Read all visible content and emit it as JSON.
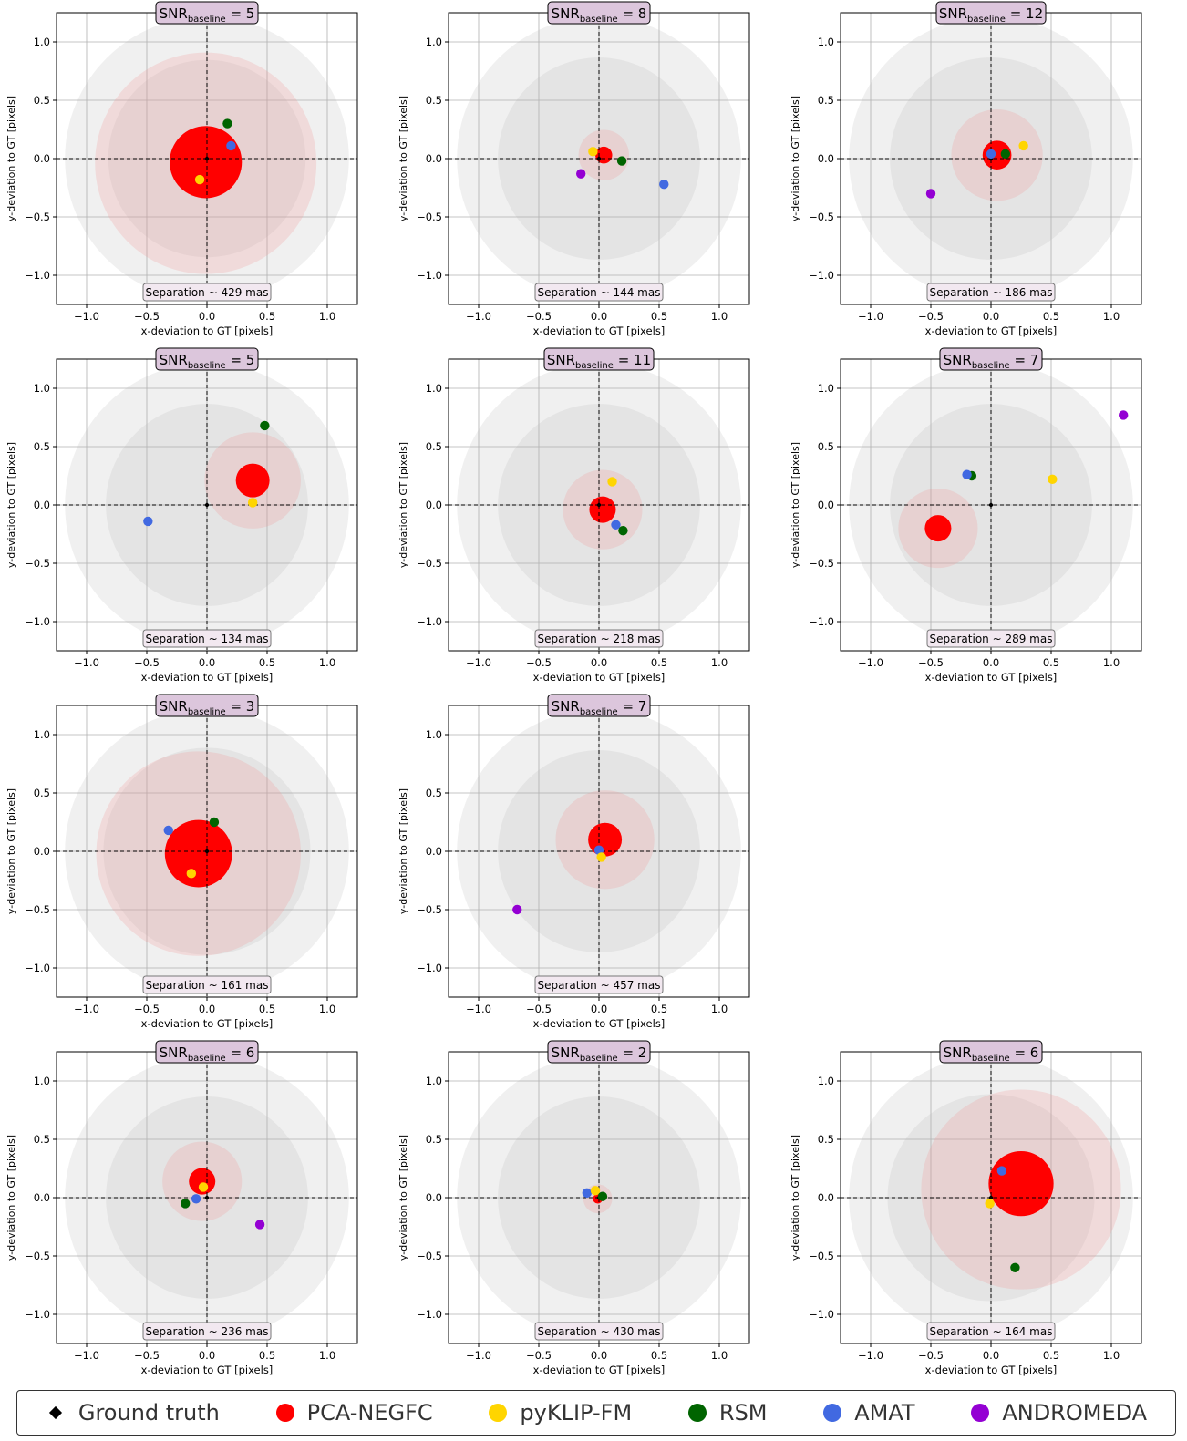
{
  "method_colors": {
    "PCA-NEGFC": "#ff0000",
    "pyKLIP-FM": "#ffd500",
    "RSM": "#006400",
    "AMAT": "#4169e1",
    "ANDROMEDA": "#9400d3"
  },
  "legend": [
    {
      "label": "Ground truth",
      "marker": "diamond",
      "color": "#000000"
    },
    {
      "label": "PCA-NEGFC",
      "marker": "dot",
      "color": "#ff0000"
    },
    {
      "label": "pyKLIP-FM",
      "marker": "dot",
      "color": "#ffd500"
    },
    {
      "label": "RSM",
      "marker": "dot",
      "color": "#006400"
    },
    {
      "label": "AMAT",
      "marker": "dot",
      "color": "#4169e1"
    },
    {
      "label": "ANDROMEDA",
      "marker": "dot",
      "color": "#9400d3"
    }
  ],
  "chart_data": [
    {
      "type": "scatter",
      "snr": "5",
      "separation": "Separation ~ 429 mas",
      "xlabel": "x-deviation to GT [pixels]",
      "ylabel": "y-deviation to GT [pixels]",
      "xlim": [
        -1.25,
        1.25
      ],
      "ylim": [
        -1.25,
        1.25
      ],
      "xticks": [
        "−1.0",
        "−0.5",
        "0.0",
        "0.5",
        "1.0"
      ],
      "yticks": [
        "−1.0",
        "−0.5",
        "0.0",
        "0.5",
        "1.0"
      ],
      "grey_circles": [
        1.18,
        0.82
      ],
      "pca_uncertainty": {
        "x": -0.01,
        "y": -0.04,
        "r": 0.92
      },
      "pca_disk": {
        "x": -0.01,
        "y": -0.03,
        "r": 0.3
      },
      "points": [
        {
          "method": "RSM",
          "x": 0.17,
          "y": 0.3
        },
        {
          "method": "AMAT",
          "x": 0.2,
          "y": 0.11
        },
        {
          "method": "pyKLIP-FM",
          "x": -0.06,
          "y": -0.18
        }
      ],
      "ground_truth": {
        "x": 0,
        "y": 0
      }
    },
    {
      "type": "scatter",
      "snr": "8",
      "separation": "Separation ~ 144 mas",
      "xlabel": "x-deviation to GT [pixels]",
      "ylabel": "y-deviation to GT [pixels]",
      "xlim": [
        -1.25,
        1.25
      ],
      "ylim": [
        -1.25,
        1.25
      ],
      "xticks": [
        "−1.0",
        "−0.5",
        "0.0",
        "0.5",
        "1.0"
      ],
      "yticks": [
        "−1.0",
        "−0.5",
        "0.0",
        "0.5",
        "1.0"
      ],
      "grey_circles": [
        1.18,
        0.84
      ],
      "pca_uncertainty": {
        "x": 0.04,
        "y": 0.03,
        "r": 0.21
      },
      "pca_disk": {
        "x": 0.04,
        "y": 0.03,
        "r": 0.07
      },
      "points": [
        {
          "method": "pyKLIP-FM",
          "x": -0.05,
          "y": 0.06
        },
        {
          "method": "RSM",
          "x": 0.19,
          "y": -0.02
        },
        {
          "method": "ANDROMEDA",
          "x": -0.15,
          "y": -0.13
        },
        {
          "method": "AMAT",
          "x": 0.54,
          "y": -0.22
        }
      ],
      "ground_truth": {
        "x": 0,
        "y": 0
      }
    },
    {
      "type": "scatter",
      "snr": "12",
      "separation": "Separation ~ 186 mas",
      "xlabel": "x-deviation to GT [pixels]",
      "ylabel": "y-deviation to GT [pixels]",
      "xlim": [
        -1.25,
        1.25
      ],
      "ylim": [
        -1.25,
        1.25
      ],
      "xticks": [
        "−1.0",
        "−0.5",
        "0.0",
        "0.5",
        "1.0"
      ],
      "yticks": [
        "−1.0",
        "−0.5",
        "0.0",
        "0.5",
        "1.0"
      ],
      "grey_circles": [
        1.18,
        0.84
      ],
      "pca_uncertainty": {
        "x": 0.05,
        "y": 0.03,
        "r": 0.38
      },
      "pca_disk": {
        "x": 0.05,
        "y": 0.03,
        "r": 0.12
      },
      "points": [
        {
          "method": "pyKLIP-FM",
          "x": 0.27,
          "y": 0.11
        },
        {
          "method": "RSM",
          "x": 0.12,
          "y": 0.04
        },
        {
          "method": "AMAT",
          "x": 0.0,
          "y": 0.04
        },
        {
          "method": "ANDROMEDA",
          "x": -0.5,
          "y": -0.3
        }
      ],
      "ground_truth": {
        "x": 0,
        "y": 0
      }
    },
    {
      "type": "scatter",
      "snr": "5",
      "separation": "Separation ~ 134 mas",
      "xlabel": "x-deviation to GT [pixels]",
      "ylabel": "y-deviation to GT [pixels]",
      "xlim": [
        -1.25,
        1.25
      ],
      "ylim": [
        -1.25,
        1.25
      ],
      "xticks": [
        "−1.0",
        "−0.5",
        "0.0",
        "0.5",
        "1.0"
      ],
      "yticks": [
        "−1.0",
        "−0.5",
        "0.0",
        "0.5",
        "1.0"
      ],
      "grey_circles": [
        1.18,
        0.84
      ],
      "pca_uncertainty": {
        "x": 0.38,
        "y": 0.21,
        "r": 0.4
      },
      "pca_disk": {
        "x": 0.38,
        "y": 0.21,
        "r": 0.14
      },
      "points": [
        {
          "method": "RSM",
          "x": 0.48,
          "y": 0.68
        },
        {
          "method": "pyKLIP-FM",
          "x": 0.38,
          "y": 0.02
        },
        {
          "method": "AMAT",
          "x": -0.49,
          "y": -0.14
        }
      ],
      "ground_truth": {
        "x": 0,
        "y": 0
      }
    },
    {
      "type": "scatter",
      "snr": "11",
      "separation": "Separation ~ 218 mas",
      "xlabel": "x-deviation to GT [pixels]",
      "ylabel": "y-deviation to GT [pixels]",
      "xlim": [
        -1.25,
        1.25
      ],
      "ylim": [
        -1.25,
        1.25
      ],
      "xticks": [
        "−1.0",
        "−0.5",
        "0.0",
        "0.5",
        "1.0"
      ],
      "yticks": [
        "−1.0",
        "−0.5",
        "0.0",
        "0.5",
        "1.0"
      ],
      "grey_circles": [
        1.18,
        0.84
      ],
      "pca_uncertainty": {
        "x": 0.03,
        "y": -0.04,
        "r": 0.33
      },
      "pca_disk": {
        "x": 0.03,
        "y": -0.04,
        "r": 0.11
      },
      "points": [
        {
          "method": "pyKLIP-FM",
          "x": 0.11,
          "y": 0.2
        },
        {
          "method": "AMAT",
          "x": 0.14,
          "y": -0.17
        },
        {
          "method": "RSM",
          "x": 0.2,
          "y": -0.22
        }
      ],
      "ground_truth": {
        "x": 0,
        "y": 0
      }
    },
    {
      "type": "scatter",
      "snr": "7",
      "separation": "Separation ~ 289 mas",
      "xlabel": "x-deviation to GT [pixels]",
      "ylabel": "y-deviation to GT [pixels]",
      "xlim": [
        -1.25,
        1.25
      ],
      "ylim": [
        -1.25,
        1.25
      ],
      "xticks": [
        "−1.0",
        "−0.5",
        "0.0",
        "0.5",
        "1.0"
      ],
      "yticks": [
        "−1.0",
        "−0.5",
        "0.0",
        "0.5",
        "1.0"
      ],
      "grey_circles": [
        1.18,
        0.84
      ],
      "pca_uncertainty": {
        "x": -0.44,
        "y": -0.2,
        "r": 0.33
      },
      "pca_disk": {
        "x": -0.44,
        "y": -0.2,
        "r": 0.11
      },
      "points": [
        {
          "method": "ANDROMEDA",
          "x": 1.1,
          "y": 0.77
        },
        {
          "method": "RSM",
          "x": -0.16,
          "y": 0.25
        },
        {
          "method": "AMAT",
          "x": -0.2,
          "y": 0.26
        },
        {
          "method": "pyKLIP-FM",
          "x": 0.51,
          "y": 0.22
        }
      ],
      "ground_truth": {
        "x": 0,
        "y": 0
      }
    },
    {
      "type": "scatter",
      "snr": "3",
      "separation": "Separation ~ 161 mas",
      "xlabel": "x-deviation to GT [pixels]",
      "ylabel": "y-deviation to GT [pixels]",
      "xlim": [
        -1.25,
        1.25
      ],
      "ylim": [
        -1.25,
        1.25
      ],
      "xticks": [
        "−1.0",
        "−0.5",
        "0.0",
        "0.5",
        "1.0"
      ],
      "yticks": [
        "−1.0",
        "−0.5",
        "0.0",
        "0.5",
        "1.0"
      ],
      "grey_circles": [
        1.18,
        0.86
      ],
      "pca_uncertainty": {
        "x": -0.07,
        "y": -0.02,
        "r": 0.85
      },
      "pca_disk": {
        "x": -0.07,
        "y": -0.02,
        "r": 0.28
      },
      "points": [
        {
          "method": "AMAT",
          "x": -0.32,
          "y": 0.18
        },
        {
          "method": "RSM",
          "x": 0.06,
          "y": 0.25
        },
        {
          "method": "pyKLIP-FM",
          "x": -0.13,
          "y": -0.19
        }
      ],
      "ground_truth": {
        "x": 0,
        "y": 0
      }
    },
    {
      "type": "scatter",
      "snr": "7",
      "separation": "Separation ~ 457 mas",
      "xlabel": "x-deviation to GT [pixels]",
      "ylabel": "y-deviation to GT [pixels]",
      "xlim": [
        -1.25,
        1.25
      ],
      "ylim": [
        -1.25,
        1.25
      ],
      "xticks": [
        "−1.0",
        "−0.5",
        "0.0",
        "0.5",
        "1.0"
      ],
      "yticks": [
        "−1.0",
        "−0.5",
        "0.0",
        "0.5",
        "1.0"
      ],
      "grey_circles": [
        1.18,
        0.84
      ],
      "pca_uncertainty": {
        "x": 0.05,
        "y": 0.1,
        "r": 0.41
      },
      "pca_disk": {
        "x": 0.05,
        "y": 0.1,
        "r": 0.14
      },
      "points": [
        {
          "method": "AMAT",
          "x": 0.0,
          "y": 0.01
        },
        {
          "method": "pyKLIP-FM",
          "x": 0.02,
          "y": -0.05
        },
        {
          "method": "ANDROMEDA",
          "x": -0.68,
          "y": -0.5
        }
      ],
      "ground_truth": {
        "x": 0,
        "y": 0
      }
    },
    {
      "type": "scatter",
      "snr": "6",
      "separation": "Separation ~ 236 mas",
      "xlabel": "x-deviation to GT [pixels]",
      "ylabel": "y-deviation to GT [pixels]",
      "xlim": [
        -1.25,
        1.25
      ],
      "ylim": [
        -1.25,
        1.25
      ],
      "xticks": [
        "−1.0",
        "−0.5",
        "0.0",
        "0.5",
        "1.0"
      ],
      "yticks": [
        "−1.0",
        "−0.5",
        "0.0",
        "0.5",
        "1.0"
      ],
      "grey_circles": [
        1.18,
        0.84
      ],
      "pca_uncertainty": {
        "x": -0.04,
        "y": 0.14,
        "r": 0.33
      },
      "pca_disk": {
        "x": -0.04,
        "y": 0.14,
        "r": 0.11
      },
      "points": [
        {
          "method": "pyKLIP-FM",
          "x": -0.03,
          "y": 0.09
        },
        {
          "method": "AMAT",
          "x": -0.09,
          "y": -0.01
        },
        {
          "method": "RSM",
          "x": -0.18,
          "y": -0.05
        },
        {
          "method": "ANDROMEDA",
          "x": 0.44,
          "y": -0.23
        }
      ],
      "ground_truth": {
        "x": 0,
        "y": 0
      }
    },
    {
      "type": "scatter",
      "snr": "2",
      "separation": "Separation ~ 430 mas",
      "xlabel": "x-deviation to GT [pixels]",
      "ylabel": "y-deviation to GT [pixels]",
      "xlim": [
        -1.25,
        1.25
      ],
      "ylim": [
        -1.25,
        1.25
      ],
      "xticks": [
        "−1.0",
        "−0.5",
        "0.0",
        "0.5",
        "1.0"
      ],
      "yticks": [
        "−1.0",
        "−0.5",
        "0.0",
        "0.5",
        "1.0"
      ],
      "grey_circles": [
        1.18,
        0.84
      ],
      "pca_uncertainty": {
        "x": -0.01,
        "y": -0.01,
        "r": 0.12
      },
      "pca_disk": {
        "x": -0.01,
        "y": -0.01,
        "r": 0.04
      },
      "points": [
        {
          "method": "AMAT",
          "x": -0.1,
          "y": 0.04
        },
        {
          "method": "pyKLIP-FM",
          "x": -0.03,
          "y": 0.06
        },
        {
          "method": "RSM",
          "x": 0.03,
          "y": 0.01
        }
      ],
      "ground_truth": {
        "x": 0,
        "y": 0
      }
    },
    {
      "type": "scatter",
      "snr": "6",
      "separation": "Separation ~ 164 mas",
      "xlabel": "x-deviation to GT [pixels]",
      "ylabel": "y-deviation to GT [pixels]",
      "xlim": [
        -1.25,
        1.25
      ],
      "ylim": [
        -1.25,
        1.25
      ],
      "xticks": [
        "−1.0",
        "−0.5",
        "0.0",
        "0.5",
        "1.0"
      ],
      "yticks": [
        "−1.0",
        "−0.5",
        "0.0",
        "0.5",
        "1.0"
      ],
      "grey_circles": [
        1.18,
        0.86
      ],
      "pca_uncertainty": {
        "x": 0.25,
        "y": 0.07,
        "r": 0.83
      },
      "pca_disk": {
        "x": 0.25,
        "y": 0.12,
        "r": 0.27
      },
      "points": [
        {
          "method": "AMAT",
          "x": 0.09,
          "y": 0.23
        },
        {
          "method": "pyKLIP-FM",
          "x": -0.01,
          "y": -0.05
        },
        {
          "method": "RSM",
          "x": 0.2,
          "y": -0.6
        }
      ],
      "ground_truth": {
        "x": 0,
        "y": 0
      }
    }
  ]
}
